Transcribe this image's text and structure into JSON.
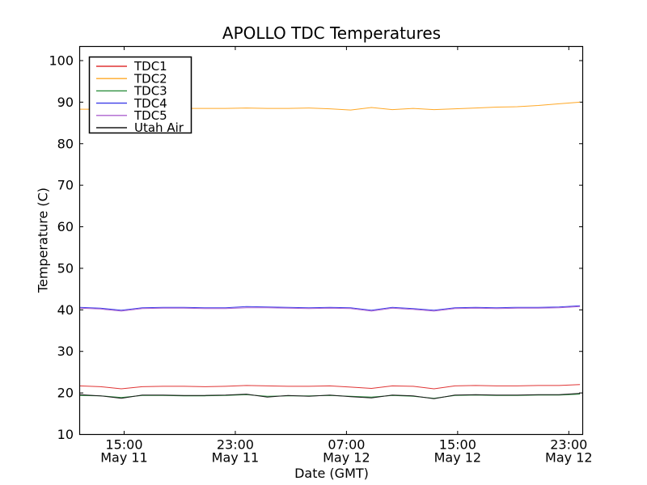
{
  "chart_data": {
    "type": "line",
    "title": "APOLLO TDC Temperatures",
    "xlabel": "Date (GMT)",
    "ylabel": "Temperature (C)",
    "grid": false,
    "legend_position": "upper left",
    "xlim": [
      0,
      36.2
    ],
    "ylim": [
      10,
      103.4
    ],
    "x_description": "hours from left edge of plot; ticks every 8 hours",
    "yticks": [
      10,
      20,
      30,
      40,
      50,
      60,
      70,
      80,
      90,
      100
    ],
    "xticks": [
      {
        "pos": 3.2,
        "time": "15:00",
        "date": "May 11"
      },
      {
        "pos": 11.2,
        "time": "23:00",
        "date": "May 11"
      },
      {
        "pos": 19.2,
        "time": "07:00",
        "date": "May 12"
      },
      {
        "pos": 27.2,
        "time": "15:00",
        "date": "May 12"
      },
      {
        "pos": 35.2,
        "time": "23:00",
        "date": "May 12"
      }
    ],
    "x": [
      0,
      1.5,
      3,
      4.5,
      6,
      7.5,
      9,
      10.5,
      12,
      13.5,
      15,
      16.5,
      18,
      19.5,
      21,
      22.5,
      24,
      25.5,
      27,
      28.5,
      30,
      31.5,
      33,
      34.5,
      36
    ],
    "series": [
      {
        "name": "TDC1",
        "color": "#e03434",
        "values": [
          21.7,
          21.5,
          21.0,
          21.5,
          21.6,
          21.6,
          21.5,
          21.6,
          21.8,
          21.7,
          21.6,
          21.6,
          21.7,
          21.4,
          21.1,
          21.7,
          21.6,
          21.0,
          21.7,
          21.8,
          21.7,
          21.7,
          21.8,
          21.8,
          22.0
        ]
      },
      {
        "name": "TDC2",
        "color": "#ffa826",
        "values": [
          88.3,
          88.3,
          88.4,
          88.4,
          88.4,
          88.5,
          88.5,
          88.5,
          88.6,
          88.5,
          88.5,
          88.6,
          88.4,
          88.1,
          88.7,
          88.2,
          88.5,
          88.2,
          88.4,
          88.6,
          88.8,
          88.9,
          89.2,
          89.6,
          90.0
        ]
      },
      {
        "name": "TDC3",
        "color": "#2d8f3f",
        "values": [
          19.4,
          19.3,
          18.9,
          19.4,
          19.4,
          19.3,
          19.3,
          19.4,
          19.6,
          19.2,
          19.3,
          19.3,
          19.4,
          19.2,
          19.0,
          19.4,
          19.2,
          18.7,
          19.4,
          19.5,
          19.4,
          19.4,
          19.5,
          19.5,
          19.7
        ]
      },
      {
        "name": "TDC4",
        "color": "#3d3de8",
        "values": [
          40.6,
          40.4,
          39.9,
          40.5,
          40.6,
          40.6,
          40.5,
          40.5,
          40.8,
          40.7,
          40.6,
          40.5,
          40.6,
          40.5,
          39.9,
          40.6,
          40.3,
          39.9,
          40.5,
          40.6,
          40.5,
          40.6,
          40.6,
          40.7,
          41.0
        ]
      },
      {
        "name": "TDC5",
        "color": "#ad63cf",
        "values": [
          40.4,
          40.2,
          39.7,
          40.3,
          40.4,
          40.4,
          40.3,
          40.3,
          40.5,
          40.5,
          40.4,
          40.3,
          40.4,
          40.3,
          39.7,
          40.4,
          40.1,
          39.7,
          40.3,
          40.4,
          40.3,
          40.4,
          40.4,
          40.5,
          40.8
        ]
      },
      {
        "name": "Utah Air",
        "color": "#1a1a1a",
        "values": [
          19.6,
          19.3,
          18.7,
          19.5,
          19.5,
          19.4,
          19.4,
          19.5,
          19.7,
          19.0,
          19.4,
          19.2,
          19.5,
          19.1,
          18.8,
          19.5,
          19.3,
          18.6,
          19.5,
          19.6,
          19.5,
          19.5,
          19.6,
          19.6,
          19.9
        ]
      }
    ],
    "colors": {
      "axes": "#000000",
      "background": "#ffffff",
      "legend_border": "#000000",
      "legend_background": "#ffffff"
    }
  }
}
